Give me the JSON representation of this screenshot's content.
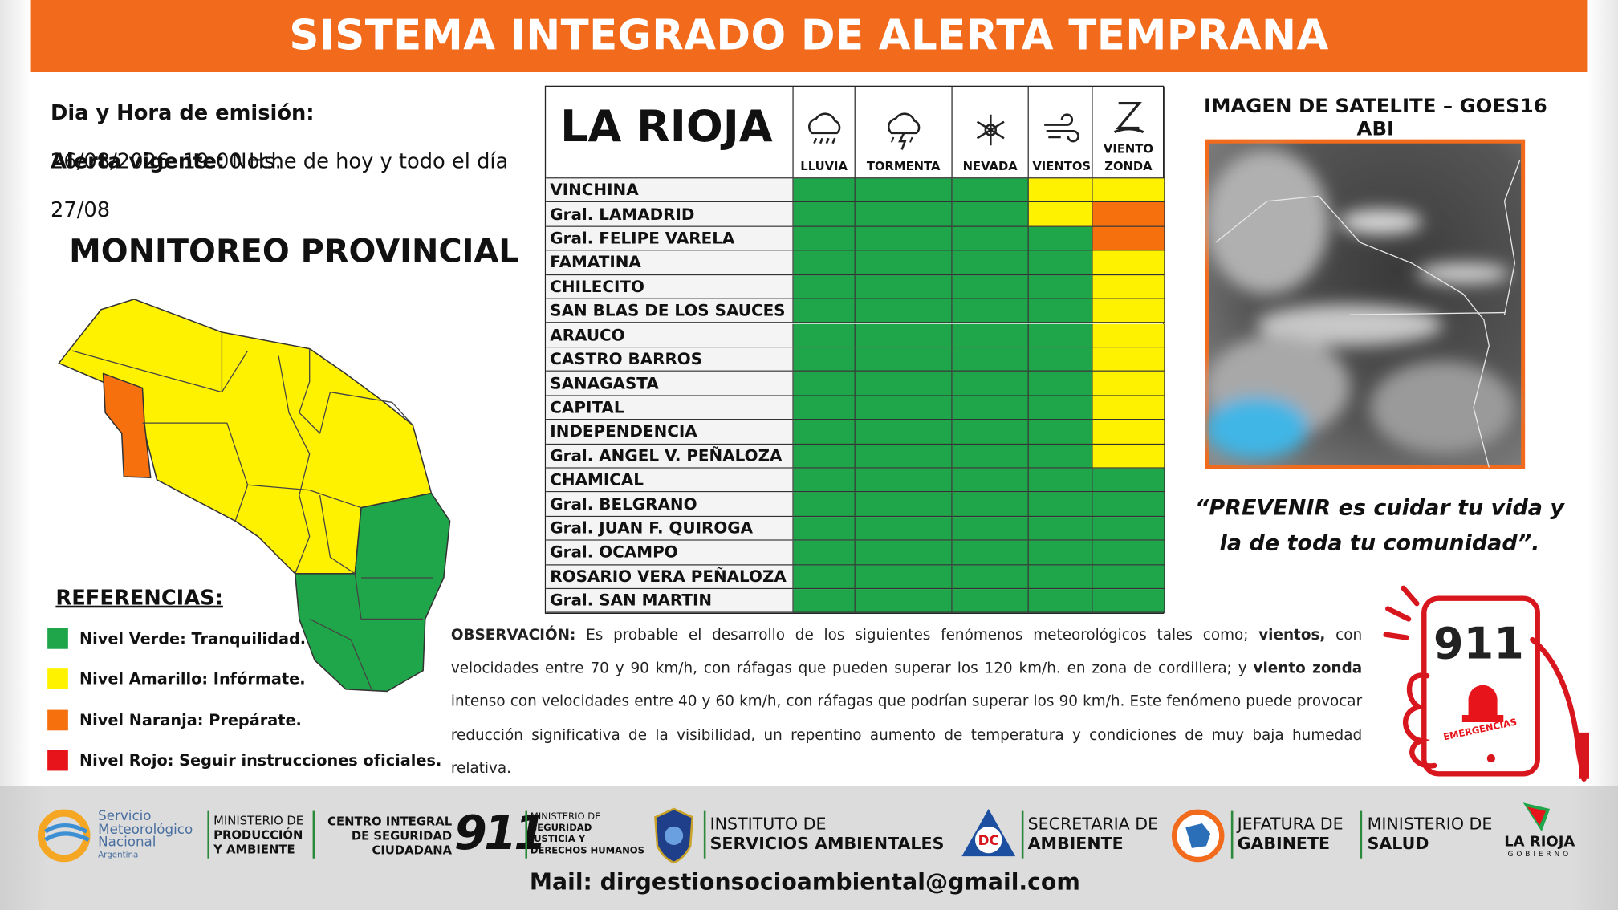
{
  "header": {
    "title": "SISTEMA INTEGRADO DE ALERTA TEMPRANA"
  },
  "emission": {
    "label": "Dia y Hora de emisión:",
    "value": "26/08/2026  19:00 Hs."
  },
  "alert": {
    "label": "Alerta vigente:",
    "value": "Noche de hoy y todo el día 27/08"
  },
  "monitoring_title": "MONITOREO PROVINCIAL",
  "references": {
    "title": "REFERENCIAS:",
    "items": [
      {
        "label": "Nivel Verde: Tranquilidad.",
        "color": "#1fa64a"
      },
      {
        "label": "Nivel Amarillo: Infórmate.",
        "color": "#fff200"
      },
      {
        "label": "Nivel Naranja: Prepárate.",
        "color": "#f7700e"
      },
      {
        "label": "Nivel Rojo: Seguir instrucciones oficiales.",
        "color": "#e8141b"
      }
    ]
  },
  "table": {
    "province": "LA RIOJA",
    "columns": [
      "LLUVIA",
      "TORMENTA",
      "NEVADA",
      "VIENTOS",
      "VIENTO ZONDA"
    ],
    "rows": [
      {
        "name": "VINCHINA",
        "cells": [
          "#1fa64a",
          "#1fa64a",
          "#1fa64a",
          "#fff200",
          "#fff200"
        ]
      },
      {
        "name": "Gral. LAMADRID",
        "cells": [
          "#1fa64a",
          "#1fa64a",
          "#1fa64a",
          "#fff200",
          "#f7700e"
        ]
      },
      {
        "name": "Gral. FELIPE VARELA",
        "cells": [
          "#1fa64a",
          "#1fa64a",
          "#1fa64a",
          "#1fa64a",
          "#f7700e"
        ]
      },
      {
        "name": "FAMATINA",
        "cells": [
          "#1fa64a",
          "#1fa64a",
          "#1fa64a",
          "#1fa64a",
          "#fff200"
        ]
      },
      {
        "name": "CHILECITO",
        "cells": [
          "#1fa64a",
          "#1fa64a",
          "#1fa64a",
          "#1fa64a",
          "#fff200"
        ]
      },
      {
        "name": "SAN BLAS DE LOS SAUCES",
        "cells": [
          "#1fa64a",
          "#1fa64a",
          "#1fa64a",
          "#1fa64a",
          "#fff200"
        ]
      },
      {
        "name": "ARAUCO",
        "cells": [
          "#1fa64a",
          "#1fa64a",
          "#1fa64a",
          "#1fa64a",
          "#fff200"
        ]
      },
      {
        "name": "CASTRO BARROS",
        "cells": [
          "#1fa64a",
          "#1fa64a",
          "#1fa64a",
          "#1fa64a",
          "#fff200"
        ]
      },
      {
        "name": "SANAGASTA",
        "cells": [
          "#1fa64a",
          "#1fa64a",
          "#1fa64a",
          "#1fa64a",
          "#fff200"
        ]
      },
      {
        "name": "CAPITAL",
        "cells": [
          "#1fa64a",
          "#1fa64a",
          "#1fa64a",
          "#1fa64a",
          "#fff200"
        ]
      },
      {
        "name": "INDEPENDENCIA",
        "cells": [
          "#1fa64a",
          "#1fa64a",
          "#1fa64a",
          "#1fa64a",
          "#fff200"
        ]
      },
      {
        "name": "Gral. ANGEL V. PEÑALOZA",
        "cells": [
          "#1fa64a",
          "#1fa64a",
          "#1fa64a",
          "#1fa64a",
          "#fff200"
        ]
      },
      {
        "name": "CHAMICAL",
        "cells": [
          "#1fa64a",
          "#1fa64a",
          "#1fa64a",
          "#1fa64a",
          "#1fa64a"
        ]
      },
      {
        "name": "Gral. BELGRANO",
        "cells": [
          "#1fa64a",
          "#1fa64a",
          "#1fa64a",
          "#1fa64a",
          "#1fa64a"
        ]
      },
      {
        "name": "Gral. JUAN F. QUIROGA",
        "cells": [
          "#1fa64a",
          "#1fa64a",
          "#1fa64a",
          "#1fa64a",
          "#1fa64a"
        ]
      },
      {
        "name": "Gral. OCAMPO",
        "cells": [
          "#1fa64a",
          "#1fa64a",
          "#1fa64a",
          "#1fa64a",
          "#1fa64a"
        ]
      },
      {
        "name": "ROSARIO VERA PEÑALOZA",
        "cells": [
          "#1fa64a",
          "#1fa64a",
          "#1fa64a",
          "#1fa64a",
          "#1fa64a"
        ]
      },
      {
        "name": "Gral. SAN MARTIN",
        "cells": [
          "#1fa64a",
          "#1fa64a",
          "#1fa64a",
          "#1fa64a",
          "#1fa64a"
        ]
      }
    ]
  },
  "satellite": {
    "title": "IMAGEN DE SATELITE – GOES16 ABI"
  },
  "quote": [
    "“PREVENIR es cuidar tu vida y",
    "la de toda tu comunidad”."
  ],
  "observation": [
    {
      "text": "OBSERVACIÓN:",
      "bold": true
    },
    {
      "text": " Es probable el desarrollo de los siguientes fenómenos meteorológicos tales como; ",
      "bold": false
    },
    {
      "text": "vientos,",
      "bold": true
    },
    {
      "text": " con velocidades entre 70 y 90 km/h, con ráfagas que pueden superar los 120 km/h. en zona de cordillera; y ",
      "bold": false
    },
    {
      "text": "viento zonda",
      "bold": true
    },
    {
      "text": " intenso con velocidades entre 40 y 60 km/h, con ráfagas que podrían superar los 90 km/h. Este fenómeno puede provocar reducción significativa de la visibilidad, un repentino aumento de temperatura y condiciones de muy baja humedad relativa.",
      "bold": false
    }
  ],
  "emergency": {
    "number": "911",
    "label": "EMERGENCIAS"
  },
  "footer": {
    "logos": [
      {
        "lines": [
          "Servicio",
          "Meteorológico",
          "Nacional",
          "Argentina"
        ]
      },
      {
        "lines": [
          "MINISTERIO DE",
          "PRODUCCIÓN",
          "Y AMBIENTE"
        ]
      },
      {
        "lines": [
          "CENTRO INTEGRAL",
          "DE SEGURIDAD",
          "CIUDADANA",
          "911"
        ]
      },
      {
        "lines": [
          "MINISTERIO DE",
          "SEGURIDAD",
          "JUSTICIA Y",
          "DERECHOS HUMANOS"
        ]
      },
      {
        "lines": [
          "INSTITUTO DE",
          "SERVICIOS AMBIENTALES"
        ]
      },
      {
        "lines": [
          "DC"
        ]
      },
      {
        "lines": [
          "SECRETARIA DE",
          "AMBIENTE"
        ]
      },
      {
        "lines": [
          "JEFATURA DE",
          "GABINETE"
        ]
      },
      {
        "lines": [
          "MINISTERIO DE",
          "SALUD"
        ]
      },
      {
        "lines": [
          "LA RIOJA",
          "GOBIERNO"
        ]
      }
    ],
    "mail": "Mail: dirgestionsocioambiental@gmail.com"
  }
}
